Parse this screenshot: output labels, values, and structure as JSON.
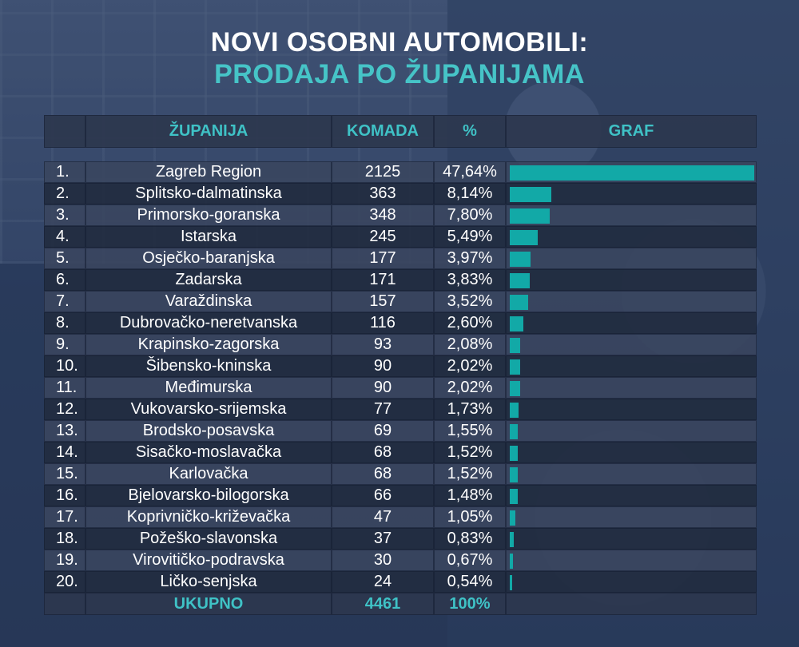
{
  "title_line1": "NOVI OSOBNI AUTOMOBILI:",
  "title_line2": "PRODAJA PO ŽUPANIJAMA",
  "colors": {
    "accent": "#46c4c7",
    "bar": "#12a9a7"
  },
  "chart_data": {
    "type": "bar",
    "title": "NOVI OSOBNI AUTOMOBILI: PRODAJA PO ŽUPANIJAMA",
    "columns": {
      "county": "ŽUPANIJA",
      "count": "KOMADA",
      "percent": "%",
      "graph": "GRAF"
    },
    "rows": [
      {
        "rank": "1.",
        "name": "Zagreb Region",
        "count": "2125",
        "pct_label": "47,64%",
        "pct": 47.64
      },
      {
        "rank": "2.",
        "name": "Splitsko-dalmatinska",
        "count": "363",
        "pct_label": "8,14%",
        "pct": 8.14
      },
      {
        "rank": "3.",
        "name": "Primorsko-goranska",
        "count": "348",
        "pct_label": "7,80%",
        "pct": 7.8
      },
      {
        "rank": "4.",
        "name": "Istarska",
        "count": "245",
        "pct_label": "5,49%",
        "pct": 5.49
      },
      {
        "rank": "5.",
        "name": "Osječko-baranjska",
        "count": "177",
        "pct_label": "3,97%",
        "pct": 3.97
      },
      {
        "rank": "6.",
        "name": "Zadarska",
        "count": "171",
        "pct_label": "3,83%",
        "pct": 3.83
      },
      {
        "rank": "7.",
        "name": "Varaždinska",
        "count": "157",
        "pct_label": "3,52%",
        "pct": 3.52
      },
      {
        "rank": "8.",
        "name": "Dubrovačko-neretvanska",
        "count": "116",
        "pct_label": "2,60%",
        "pct": 2.6
      },
      {
        "rank": "9.",
        "name": "Krapinsko-zagorska",
        "count": "93",
        "pct_label": "2,08%",
        "pct": 2.08
      },
      {
        "rank": "10.",
        "name": "Šibensko-kninska",
        "count": "90",
        "pct_label": "2,02%",
        "pct": 2.02
      },
      {
        "rank": "11.",
        "name": "Međimurska",
        "count": "90",
        "pct_label": "2,02%",
        "pct": 2.02
      },
      {
        "rank": "12.",
        "name": "Vukovarsko-srijemska",
        "count": "77",
        "pct_label": "1,73%",
        "pct": 1.73
      },
      {
        "rank": "13.",
        "name": "Brodsko-posavska",
        "count": "69",
        "pct_label": "1,55%",
        "pct": 1.55
      },
      {
        "rank": "14.",
        "name": "Sisačko-moslavačka",
        "count": "68",
        "pct_label": "1,52%",
        "pct": 1.52
      },
      {
        "rank": "15.",
        "name": "Karlovačka",
        "count": "68",
        "pct_label": "1,52%",
        "pct": 1.52
      },
      {
        "rank": "16.",
        "name": "Bjelovarsko-bilogorska",
        "count": "66",
        "pct_label": "1,48%",
        "pct": 1.48
      },
      {
        "rank": "17.",
        "name": "Koprivničko-križevačka",
        "count": "47",
        "pct_label": "1,05%",
        "pct": 1.05
      },
      {
        "rank": "18.",
        "name": "Požeško-slavonska",
        "count": "37",
        "pct_label": "0,83%",
        "pct": 0.83
      },
      {
        "rank": "19.",
        "name": "Virovitičko-podravska",
        "count": "30",
        "pct_label": "0,67%",
        "pct": 0.67
      },
      {
        "rank": "20.",
        "name": "Ličko-senjska",
        "count": "24",
        "pct_label": "0,54%",
        "pct": 0.54
      }
    ],
    "total": {
      "label": "UKUPNO",
      "count": "4461",
      "pct_label": "100%"
    },
    "max_pct": 47.64
  }
}
